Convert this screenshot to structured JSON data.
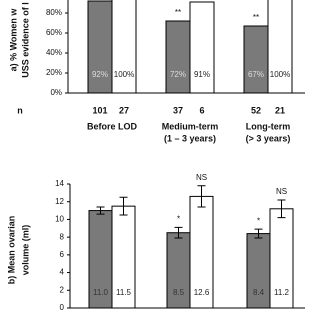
{
  "chart_data": [
    {
      "type": "bar",
      "y_label_lines": [
        "a) % Women w",
        "USS evidence of l"
      ],
      "categories": [
        "Before LOD",
        "Medium-term",
        "Long-term"
      ],
      "category_notes": [
        null,
        "(1 – 3 years)",
        "(> 3 years)"
      ],
      "n_label": "n",
      "series": [
        {
          "color": "#7a7a7a",
          "values": [
            92,
            72,
            67
          ],
          "value_labels": [
            "92%",
            "72%",
            "67%"
          ],
          "n": [
            101,
            37,
            52
          ],
          "annotations": [
            null,
            "**",
            "**"
          ]
        },
        {
          "color": "#ffffff",
          "values": [
            100,
            91,
            100
          ],
          "value_labels": [
            "100%",
            "91%",
            "100%"
          ],
          "n": [
            27,
            6,
            21
          ],
          "annotations": [
            null,
            null,
            null
          ]
        }
      ],
      "ylim": [
        0,
        100
      ],
      "yticks": [
        {
          "value": 0,
          "label": "0%"
        },
        {
          "value": 20,
          "label": "20%"
        },
        {
          "value": 40,
          "label": "40%"
        },
        {
          "value": 60,
          "label": "60%"
        },
        {
          "value": 80,
          "label": "80%"
        }
      ]
    },
    {
      "type": "bar",
      "y_label_lines": [
        "b) Mean ovarian",
        "volume (ml)"
      ],
      "series": [
        {
          "color": "#7a7a7a",
          "values": [
            11.0,
            8.5,
            8.4
          ],
          "value_labels": [
            "11.0",
            "8.5",
            "8.4"
          ],
          "errors": [
            0.4,
            0.6,
            0.5
          ],
          "annotations": [
            null,
            "*",
            "*"
          ]
        },
        {
          "color": "#ffffff",
          "values": [
            11.5,
            12.6,
            11.2
          ],
          "value_labels": [
            "11.5",
            "12.6",
            "11.2"
          ],
          "errors": [
            1.0,
            1.2,
            1.0
          ],
          "annotations": [
            null,
            "NS",
            "NS"
          ]
        }
      ],
      "ylim": [
        0,
        14
      ],
      "yticks": [
        0,
        2,
        4,
        6,
        8,
        10,
        12,
        14
      ]
    }
  ]
}
